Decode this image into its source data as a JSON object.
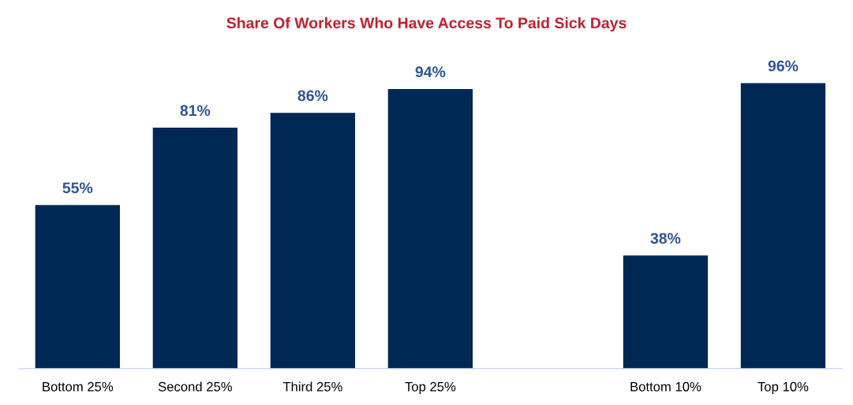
{
  "chart_data": {
    "type": "bar",
    "title": "Share Of Workers Who Have Access To Paid Sick Days",
    "categories": [
      "Bottom 25%",
      "Second 25%",
      "Third 25%",
      "Top 25%",
      null,
      "Bottom 10%",
      "Top 10%"
    ],
    "values": [
      55,
      81,
      86,
      94,
      null,
      38,
      96
    ],
    "value_labels": [
      "55%",
      "81%",
      "86%",
      "94%",
      null,
      "38%",
      "96%"
    ],
    "color": "#002855",
    "grid": false,
    "legend": false
  }
}
